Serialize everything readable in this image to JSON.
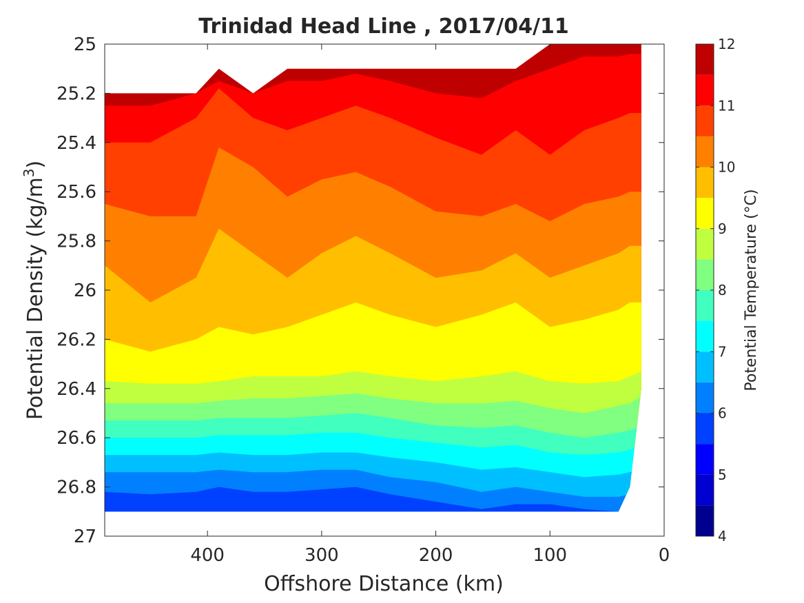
{
  "chart_data": {
    "type": "contourf",
    "title": "Trinidad Head Line , 2017/04/11",
    "xlabel": "Offshore Distance (km)",
    "ylabel": "Potential Density (kg/m",
    "ylabel_sup": "3",
    "ylabel_tail": ")",
    "xlim": [
      490,
      0
    ],
    "ylim": [
      25,
      27
    ],
    "y_reversed": true,
    "x_reversed": true,
    "xticks": [
      400,
      300,
      200,
      100,
      0
    ],
    "xtick_labels": [
      "400",
      "300",
      "200",
      "100",
      "0"
    ],
    "yticks": [
      25,
      25.2,
      25.4,
      25.6,
      25.8,
      26,
      26.2,
      26.4,
      26.6,
      26.8,
      27
    ],
    "ytick_labels": [
      "25",
      "25.2",
      "25.4",
      "25.6",
      "25.8",
      "26",
      "26.2",
      "26.4",
      "26.6",
      "26.8",
      "27"
    ],
    "colorbar": {
      "label": "Potential Temperature (°C)",
      "range": [
        4,
        12
      ],
      "ticks": [
        4,
        5,
        6,
        7,
        8,
        9,
        10,
        11,
        12
      ],
      "tick_labels": [
        "4",
        "5",
        "6",
        "7",
        "8",
        "9",
        "10",
        "11",
        "12"
      ],
      "levels": [
        4,
        4.5,
        5,
        5.5,
        6,
        6.5,
        7,
        7.5,
        8,
        8.5,
        9,
        9.5,
        10,
        10.5,
        11,
        11.5,
        12
      ],
      "colors": [
        "#00008f",
        "#0000d0",
        "#0000ff",
        "#0040ff",
        "#0080ff",
        "#00bfff",
        "#00ffff",
        "#40ffbf",
        "#80ff80",
        "#bfff40",
        "#ffff00",
        "#ffbf00",
        "#ff8000",
        "#ff4000",
        "#ff0000",
        "#bf0000"
      ]
    },
    "x_km": [
      490,
      450,
      410,
      390,
      360,
      330,
      300,
      270,
      240,
      200,
      160,
      130,
      100,
      70,
      40,
      30,
      20
    ],
    "top_density": [
      25.2,
      25.2,
      25.2,
      25.1,
      25.2,
      25.1,
      25.1,
      25.1,
      25.1,
      25.1,
      25.1,
      25.1,
      25.0,
      25.0,
      25.0,
      25.0,
      25.0
    ],
    "bottom_density": [
      26.9,
      26.9,
      26.9,
      26.9,
      26.9,
      26.9,
      26.9,
      26.9,
      26.9,
      26.9,
      26.9,
      26.9,
      26.9,
      26.9,
      26.9,
      26.8,
      26.4
    ],
    "isotherms": [
      {
        "temp": 11.5,
        "densities": [
          25.25,
          25.25,
          25.2,
          25.15,
          25.2,
          25.15,
          25.15,
          25.12,
          25.15,
          25.2,
          25.22,
          25.15,
          25.1,
          25.05,
          25.05,
          25.04,
          25.04
        ]
      },
      {
        "temp": 11,
        "densities": [
          25.4,
          25.4,
          25.3,
          25.18,
          25.3,
          25.35,
          25.3,
          25.25,
          25.3,
          25.38,
          25.45,
          25.35,
          25.45,
          25.35,
          25.3,
          25.28,
          25.28
        ]
      },
      {
        "temp": 10.5,
        "densities": [
          25.65,
          25.7,
          25.7,
          25.42,
          25.5,
          25.62,
          25.55,
          25.52,
          25.58,
          25.68,
          25.7,
          25.65,
          25.72,
          25.65,
          25.62,
          25.6,
          25.6
        ]
      },
      {
        "temp": 10,
        "densities": [
          25.9,
          26.05,
          25.95,
          25.75,
          25.85,
          25.95,
          25.85,
          25.78,
          25.85,
          25.95,
          25.92,
          25.85,
          25.95,
          25.9,
          25.85,
          25.82,
          25.82
        ]
      },
      {
        "temp": 9.5,
        "densities": [
          26.2,
          26.25,
          26.2,
          26.15,
          26.18,
          26.15,
          26.1,
          26.05,
          26.1,
          26.15,
          26.1,
          26.05,
          26.15,
          26.12,
          26.08,
          26.05,
          26.05
        ]
      },
      {
        "temp": 9,
        "densities": [
          26.37,
          26.38,
          26.38,
          26.37,
          26.35,
          26.35,
          26.35,
          26.33,
          26.35,
          26.37,
          26.35,
          26.33,
          26.37,
          26.38,
          26.37,
          26.35,
          26.33
        ]
      },
      {
        "temp": 8.5,
        "densities": [
          26.46,
          26.46,
          26.46,
          26.45,
          26.44,
          26.44,
          26.43,
          26.42,
          26.44,
          26.46,
          26.46,
          26.45,
          26.48,
          26.5,
          26.47,
          26.46,
          26.43
        ]
      },
      {
        "temp": 8,
        "densities": [
          26.53,
          26.53,
          26.53,
          26.52,
          26.52,
          26.52,
          26.51,
          26.5,
          26.52,
          26.55,
          26.56,
          26.55,
          26.58,
          26.6,
          26.58,
          26.57,
          26.55
        ]
      },
      {
        "temp": 7.5,
        "densities": [
          26.6,
          26.6,
          26.6,
          26.59,
          26.59,
          26.59,
          26.58,
          26.58,
          26.6,
          26.62,
          26.64,
          26.63,
          26.66,
          26.67,
          26.66,
          26.65,
          26.63
        ]
      },
      {
        "temp": 7,
        "densities": [
          26.67,
          26.67,
          26.67,
          26.66,
          26.67,
          26.67,
          26.66,
          26.66,
          26.68,
          26.7,
          26.73,
          26.72,
          26.74,
          26.76,
          26.75,
          26.74,
          26.72
        ]
      },
      {
        "temp": 6.5,
        "densities": [
          26.74,
          26.74,
          26.74,
          26.73,
          26.74,
          26.74,
          26.73,
          26.73,
          26.76,
          26.78,
          26.82,
          26.8,
          26.82,
          26.84,
          26.84,
          26.83,
          26.82
        ]
      },
      {
        "temp": 6,
        "densities": [
          26.82,
          26.83,
          26.82,
          26.8,
          26.82,
          26.82,
          26.81,
          26.8,
          26.83,
          26.86,
          26.89,
          26.87,
          26.87,
          26.89,
          26.9,
          26.9,
          26.9
        ]
      },
      {
        "temp": 5.5,
        "densities": [
          26.9,
          26.9,
          26.9,
          26.9,
          26.9,
          26.9,
          26.9,
          26.9,
          26.9,
          26.9,
          26.9,
          26.9,
          26.9,
          26.9,
          26.9,
          26.9,
          26.9
        ]
      }
    ]
  }
}
